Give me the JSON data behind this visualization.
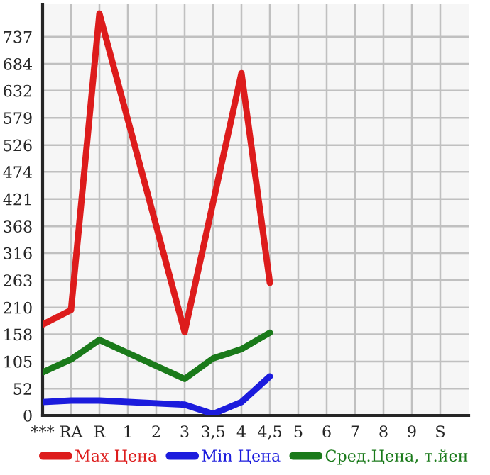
{
  "chart_data": {
    "type": "line",
    "categories": [
      "***",
      "RA",
      "R",
      "1",
      "2",
      "3",
      "3,5",
      "4",
      "4,5",
      "5",
      "6",
      "7",
      "8",
      "9",
      "S"
    ],
    "ylim": [
      0,
      800
    ],
    "yticks": [
      0,
      52,
      105,
      158,
      210,
      263,
      316,
      368,
      421,
      474,
      526,
      579,
      632,
      684,
      737
    ],
    "grid": true,
    "legend": "bottom",
    "marker": "none",
    "line_style": "solid",
    "series": [
      {
        "name": "Max Цена",
        "color": "#dd1c1c",
        "values": [
          177,
          205,
          782,
          null,
          null,
          162,
          null,
          666,
          258,
          null,
          null,
          null,
          null,
          null,
          null
        ]
      },
      {
        "name": "Min Цена",
        "color": "#1c1cdd",
        "values": [
          26,
          29,
          29,
          null,
          null,
          21,
          3,
          26,
          76,
          null,
          null,
          null,
          null,
          null,
          null
        ]
      },
      {
        "name": "Сред.Цена, т.йен",
        "color": "#1a7a1a",
        "values": [
          84,
          109,
          147,
          null,
          null,
          71,
          111,
          129,
          161,
          null,
          null,
          null,
          null,
          null,
          null
        ]
      }
    ]
  }
}
